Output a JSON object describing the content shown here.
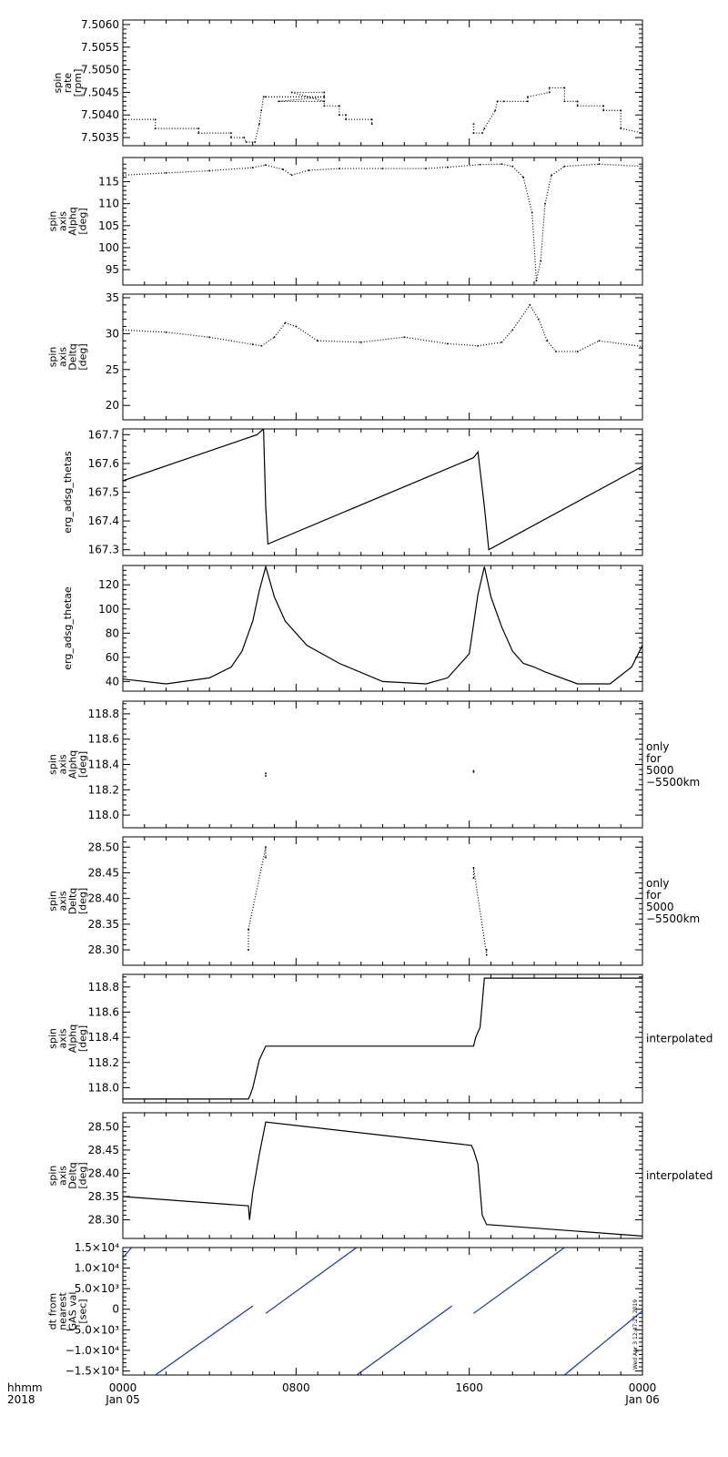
{
  "chart_data": [
    {
      "type": "scatter",
      "ylabel": [
        "spin",
        "rate",
        "[rpm]"
      ],
      "ylim": [
        7.50332,
        7.5061
      ],
      "yticks": [
        7.5035,
        7.504,
        7.5045,
        7.505,
        7.5055,
        7.506
      ],
      "ytick_labels": [
        "7.5035",
        "7.5040",
        "7.5045",
        "7.5050",
        "7.5055",
        "7.5060"
      ],
      "note": [],
      "series": [
        {
          "values": [
            [
              0.0,
              7.5039
            ],
            [
              1.5,
              7.5039
            ],
            [
              1.5,
              7.5037
            ],
            [
              3.5,
              7.5037
            ],
            [
              3.5,
              7.5036
            ],
            [
              5.0,
              7.5036
            ],
            [
              5.0,
              7.5035
            ],
            [
              5.6,
              7.5035
            ],
            [
              5.7,
              7.5034
            ],
            [
              6.1,
              7.5034
            ],
            [
              6.3,
              7.5038
            ],
            [
              6.4,
              7.5041
            ],
            [
              6.5,
              7.5044
            ],
            [
              6.6,
              7.5044
            ],
            [
              9.3,
              7.5044
            ],
            [
              7.2,
              7.5043
            ],
            [
              9.3,
              7.5043
            ],
            [
              7.8,
              7.5045
            ],
            [
              9.3,
              7.5045
            ],
            [
              9.3,
              7.5042
            ],
            [
              10.0,
              7.5042
            ],
            [
              10.0,
              7.504
            ],
            [
              10.3,
              7.504
            ],
            [
              10.3,
              7.5039
            ],
            [
              11.5,
              7.5039
            ],
            [
              11.5,
              7.5038
            ],
            [
              16.2,
              7.5038
            ],
            [
              16.2,
              7.5036
            ],
            [
              16.6,
              7.5036
            ],
            [
              16.7,
              7.5037
            ],
            [
              17.2,
              7.5041
            ],
            [
              17.3,
              7.5043
            ],
            [
              17.6,
              7.5043
            ],
            [
              18.7,
              7.5043
            ],
            [
              18.7,
              7.5044
            ],
            [
              19.7,
              7.5045
            ],
            [
              19.7,
              7.5046
            ],
            [
              20.4,
              7.5046
            ],
            [
              20.4,
              7.5043
            ],
            [
              21.0,
              7.5043
            ],
            [
              21.0,
              7.5042
            ],
            [
              22.2,
              7.5042
            ],
            [
              22.2,
              7.5041
            ],
            [
              23.0,
              7.5041
            ],
            [
              23.0,
              7.5037
            ],
            [
              24.0,
              7.5036
            ]
          ]
        }
      ]
    },
    {
      "type": "scatter",
      "ylabel": [
        "spin",
        "axis",
        "Alphq",
        "[deg]"
      ],
      "ylim": [
        91.5,
        120.5
      ],
      "yticks": [
        95,
        100,
        105,
        110,
        115
      ],
      "ytick_labels": [
        "95",
        "100",
        "105",
        "110",
        "115"
      ],
      "note": [],
      "series": [
        {
          "values": [
            [
              0.0,
              116.5
            ],
            [
              2.0,
              117.0
            ],
            [
              4.0,
              117.5
            ],
            [
              6.0,
              118.2
            ],
            [
              6.6,
              118.8
            ],
            [
              7.4,
              117.8
            ],
            [
              7.8,
              116.5
            ],
            [
              8.6,
              117.6
            ],
            [
              10.0,
              118.0
            ],
            [
              12.0,
              118.0
            ],
            [
              14.0,
              118.0
            ],
            [
              15.0,
              118.3
            ],
            [
              16.5,
              118.9
            ],
            [
              17.5,
              119.0
            ],
            [
              18.0,
              118.5
            ],
            [
              18.5,
              116.0
            ],
            [
              18.9,
              108.0
            ],
            [
              19.1,
              92.5
            ],
            [
              19.3,
              97.0
            ],
            [
              19.5,
              110.0
            ],
            [
              19.8,
              116.5
            ],
            [
              20.4,
              118.5
            ],
            [
              22.0,
              119.0
            ],
            [
              24.0,
              118.5
            ]
          ]
        }
      ]
    },
    {
      "type": "scatter",
      "ylabel": [
        "spin",
        "axis",
        "Deltq",
        "[deg]"
      ],
      "ylim": [
        18.0,
        35.5
      ],
      "yticks": [
        20,
        25,
        30,
        35
      ],
      "ytick_labels": [
        "20",
        "25",
        "30",
        "35"
      ],
      "note": [],
      "series": [
        {
          "values": [
            [
              0.0,
              30.5
            ],
            [
              2.0,
              30.2
            ],
            [
              4.0,
              29.5
            ],
            [
              6.0,
              28.5
            ],
            [
              6.4,
              28.3
            ],
            [
              7.0,
              29.5
            ],
            [
              7.5,
              31.5
            ],
            [
              8.0,
              31.0
            ],
            [
              9.0,
              29.0
            ],
            [
              11.0,
              28.8
            ],
            [
              13.0,
              29.5
            ],
            [
              15.0,
              28.6
            ],
            [
              16.4,
              28.3
            ],
            [
              17.5,
              28.8
            ],
            [
              18.0,
              30.5
            ],
            [
              18.8,
              34.0
            ],
            [
              19.2,
              32.0
            ],
            [
              19.6,
              29.0
            ],
            [
              20.0,
              27.5
            ],
            [
              21.0,
              27.5
            ],
            [
              22.0,
              29.0
            ],
            [
              24.0,
              28.2
            ]
          ]
        }
      ]
    },
    {
      "type": "line",
      "ylabel": [
        "erg_adsg_thetas"
      ],
      "ylim": [
        167.28,
        167.72
      ],
      "yticks": [
        167.3,
        167.4,
        167.5,
        167.6,
        167.7
      ],
      "ytick_labels": [
        "167.3",
        "167.4",
        "167.5",
        "167.6",
        "167.7"
      ],
      "note": [],
      "series": [
        {
          "values": [
            [
              0.0,
              167.54
            ],
            [
              6.2,
              167.7
            ],
            [
              6.5,
              167.72
            ],
            [
              6.6,
              167.45
            ],
            [
              6.7,
              167.32
            ],
            [
              16.2,
              167.62
            ],
            [
              16.4,
              167.64
            ],
            [
              16.7,
              167.45
            ],
            [
              16.9,
              167.3
            ],
            [
              24.0,
              167.59
            ]
          ]
        }
      ]
    },
    {
      "type": "line",
      "ylabel": [
        "erg_adsg_thetae"
      ],
      "ylim": [
        32,
        136
      ],
      "yticks": [
        40,
        60,
        80,
        100,
        120
      ],
      "ytick_labels": [
        "40",
        "60",
        "80",
        "100",
        "120"
      ],
      "note": [],
      "series": [
        {
          "values": [
            [
              0.0,
              42
            ],
            [
              2.0,
              38
            ],
            [
              4.0,
              43
            ],
            [
              5.0,
              52
            ],
            [
              5.5,
              65
            ],
            [
              6.0,
              90
            ],
            [
              6.3,
              115
            ],
            [
              6.6,
              135
            ],
            [
              7.0,
              110
            ],
            [
              7.5,
              90
            ],
            [
              8.5,
              70
            ],
            [
              10.0,
              55
            ],
            [
              12.0,
              40
            ],
            [
              14.0,
              38
            ],
            [
              15.0,
              43
            ],
            [
              16.0,
              63
            ],
            [
              16.4,
              112
            ],
            [
              16.7,
              135
            ],
            [
              17.0,
              110
            ],
            [
              17.5,
              85
            ],
            [
              18.0,
              65
            ],
            [
              18.5,
              55
            ],
            [
              19.0,
              52
            ],
            [
              19.5,
              48
            ],
            [
              21.0,
              38
            ],
            [
              22.5,
              38
            ],
            [
              23.5,
              52
            ],
            [
              24.0,
              70
            ]
          ]
        }
      ]
    },
    {
      "type": "scatter",
      "ylabel": [
        "spin",
        "axis",
        "Alphq",
        "[deg]"
      ],
      "ylim": [
        117.9,
        118.9
      ],
      "yticks": [
        118.0,
        118.2,
        118.4,
        118.6,
        118.8
      ],
      "ytick_labels": [
        "118.0",
        "118.2",
        "118.4",
        "118.6",
        "118.8"
      ],
      "note": [
        "only",
        "for",
        "5000",
        "−5500km"
      ],
      "series": [
        {
          "values": [
            [
              6.6,
              118.33
            ],
            [
              6.6,
              118.31
            ],
            [
              16.2,
              118.34
            ],
            [
              16.2,
              118.35
            ]
          ]
        }
      ]
    },
    {
      "type": "scatter",
      "ylabel": [
        "spin",
        "axis",
        "Deltq",
        "[deg]"
      ],
      "ylim": [
        28.27,
        28.52
      ],
      "yticks": [
        28.3,
        28.35,
        28.4,
        28.45,
        28.5
      ],
      "ytick_labels": [
        "28.30",
        "28.35",
        "28.40",
        "28.45",
        "28.50"
      ],
      "note": [
        "only",
        "for",
        "5000",
        "−5500km"
      ],
      "series": [
        {
          "values": [
            [
              5.8,
              28.3
            ],
            [
              5.8,
              28.34
            ],
            [
              6.6,
              28.5
            ],
            [
              6.6,
              28.48
            ],
            [
              16.2,
              28.44
            ],
            [
              16.2,
              28.46
            ],
            [
              16.8,
              28.29
            ],
            [
              16.8,
              28.3
            ]
          ]
        }
      ]
    },
    {
      "type": "line",
      "ylabel": [
        "spin",
        "axis",
        "Alphq",
        "[deg]"
      ],
      "ylim": [
        117.88,
        118.9
      ],
      "yticks": [
        118.0,
        118.2,
        118.4,
        118.6,
        118.8
      ],
      "ytick_labels": [
        "118.0",
        "118.2",
        "118.4",
        "118.6",
        "118.8"
      ],
      "note": [
        "interpolated"
      ],
      "series": [
        {
          "values": [
            [
              0.0,
              117.91
            ],
            [
              5.8,
              117.91
            ],
            [
              5.9,
              117.95
            ],
            [
              6.0,
              118.0
            ],
            [
              6.3,
              118.22
            ],
            [
              6.6,
              118.33
            ],
            [
              16.2,
              118.33
            ],
            [
              16.3,
              118.4
            ],
            [
              16.5,
              118.48
            ],
            [
              16.7,
              118.87
            ],
            [
              24.0,
              118.87
            ]
          ]
        }
      ]
    },
    {
      "type": "line",
      "ylabel": [
        "spin",
        "axis",
        "Deltq",
        "[deg]"
      ],
      "ylim": [
        28.26,
        28.53
      ],
      "yticks": [
        28.3,
        28.35,
        28.4,
        28.45,
        28.5
      ],
      "ytick_labels": [
        "28.30",
        "28.35",
        "28.40",
        "28.45",
        "28.50"
      ],
      "note": [
        "interpolated"
      ],
      "series": [
        {
          "values": [
            [
              0.0,
              28.35
            ],
            [
              5.8,
              28.33
            ],
            [
              5.85,
              28.3
            ],
            [
              6.0,
              28.36
            ],
            [
              6.3,
              28.44
            ],
            [
              6.6,
              28.51
            ],
            [
              16.1,
              28.46
            ],
            [
              16.2,
              28.45
            ],
            [
              16.4,
              28.42
            ],
            [
              16.6,
              28.31
            ],
            [
              16.8,
              28.29
            ],
            [
              24.0,
              28.265
            ]
          ]
        }
      ]
    },
    {
      "type": "line",
      "ylabel": [
        "dt from",
        "nearest",
        "GAS val",
        "[sec]"
      ],
      "ylim": [
        -16000,
        15000
      ],
      "yticks": [
        -15000,
        -10000,
        -5000,
        0,
        5000,
        10000,
        15000
      ],
      "ytick_labels": [
        "−1.5×10⁴",
        "−1.0×10⁴",
        "−5.0×10³",
        "0",
        "5.0×10³",
        "1.0×10⁴",
        "1.5×10⁴"
      ],
      "note": [],
      "color": "#1030d8",
      "series": [
        {
          "values": [
            [
              0.0,
              12500
            ],
            [
              0.4,
              15000
            ]
          ]
        },
        {
          "values": [
            [
              1.5,
              -16000
            ],
            [
              6.0,
              800
            ]
          ]
        },
        {
          "values": [
            [
              6.6,
              -1000
            ],
            [
              10.8,
              15000
            ]
          ]
        },
        {
          "values": [
            [
              10.8,
              -16000
            ],
            [
              15.2,
              800
            ]
          ]
        },
        {
          "values": [
            [
              16.2,
              -1000
            ],
            [
              20.4,
              15000
            ]
          ]
        },
        {
          "values": [
            [
              20.4,
              -16000
            ],
            [
              24.0,
              -400
            ]
          ]
        }
      ]
    }
  ],
  "xaxis": {
    "xlim": [
      0,
      24
    ],
    "ticks": [
      {
        "x": 0,
        "label": "0000",
        "sub": "Jan 05"
      },
      {
        "x": 8,
        "label": "0800",
        "sub": ""
      },
      {
        "x": 16,
        "label": "1600",
        "sub": ""
      },
      {
        "x": 24,
        "label": "0000",
        "sub": "Jan 06"
      }
    ],
    "left_label": [
      "hhmm",
      "2018"
    ]
  },
  "stamp": "Wed Apr  3 12:47:21 2019",
  "line_color": "#000000"
}
